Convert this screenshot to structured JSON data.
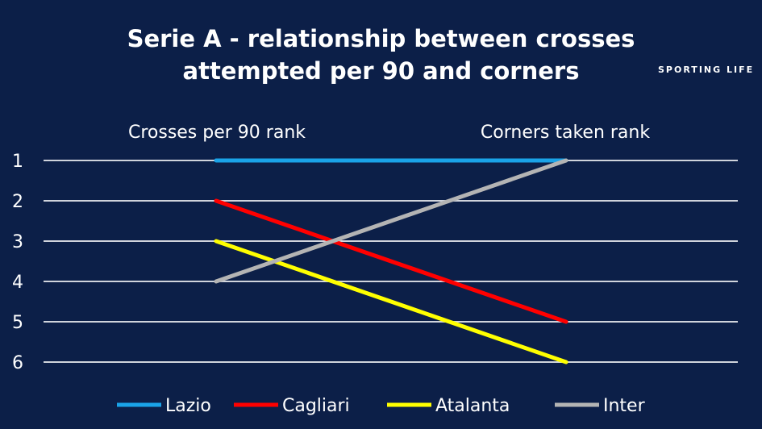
{
  "brand": "SPORTING LIFE",
  "chart_data": {
    "type": "line",
    "title_lines": [
      "Serie A - relationship between crosses",
      "attempted per 90 and corners"
    ],
    "categories": [
      "Crosses per 90 rank",
      "Corners taken rank"
    ],
    "yticks": [
      1,
      2,
      3,
      4,
      5,
      6
    ],
    "ylim": [
      1,
      6
    ],
    "y_inverted": true,
    "grid": true,
    "legend_position": "bottom",
    "series": [
      {
        "name": "Lazio",
        "values": [
          1,
          1
        ],
        "color": "#1aa3e8"
      },
      {
        "name": "Cagliari",
        "values": [
          2,
          5
        ],
        "color": "#ff0000"
      },
      {
        "name": "Atalanta",
        "values": [
          3,
          6
        ],
        "color": "#ffff00"
      },
      {
        "name": "Inter",
        "values": [
          4,
          1
        ],
        "color": "#b4b4b4"
      }
    ]
  }
}
